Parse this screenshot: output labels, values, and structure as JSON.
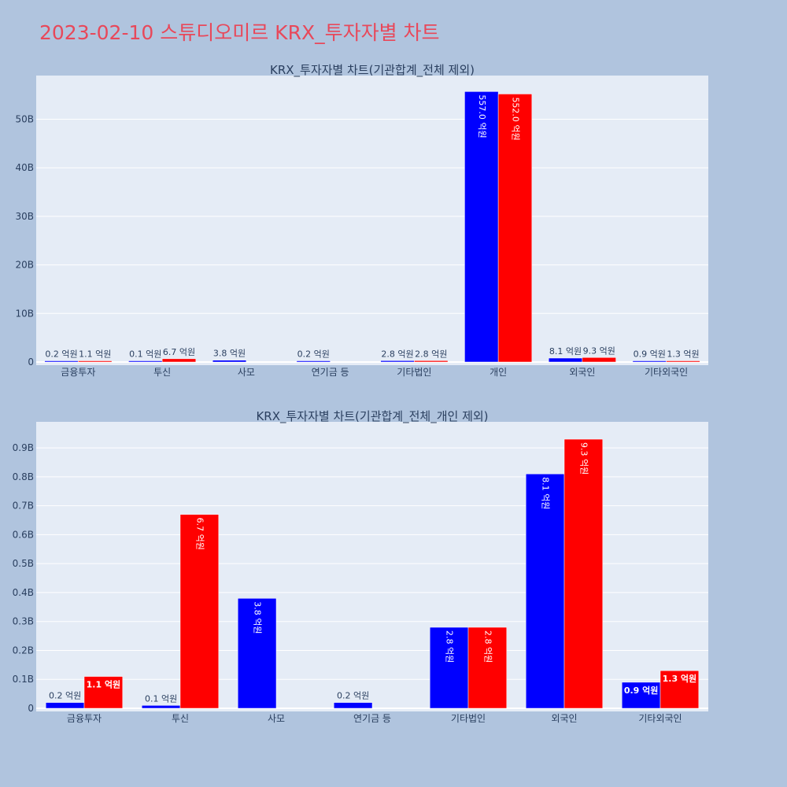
{
  "title": "2023-02-10 스튜디오미르 KRX_투자자별 차트",
  "colors": {
    "sell": "#0000FF",
    "buy": "#FF0000",
    "title": "#E8485A",
    "plot_bg": "#E5ECF6",
    "page_bg": "#B0C4DE"
  },
  "chart_data": [
    {
      "type": "bar",
      "title": "KRX_투자자별 차트(기관합계_전체 제외)",
      "categories": [
        "금융투자",
        "투신",
        "사모",
        "연기금 등",
        "기타법인",
        "개인",
        "외국인",
        "기타외국인"
      ],
      "series": [
        {
          "values": [
            20000000,
            10000000,
            380000000,
            20000000,
            280000000,
            55700000000,
            810000000,
            90000000
          ],
          "labels": [
            "0.2 억원",
            "0.1 억원",
            "3.8 억원",
            "0.2 억원",
            "2.8 억원",
            "557.0 억원",
            "8.1 억원",
            "0.9 억원"
          ]
        },
        {
          "values": [
            110000000,
            670000000,
            null,
            null,
            280000000,
            55200000000,
            930000000,
            130000000
          ],
          "labels": [
            "1.1 억원",
            "6.7 억원",
            "",
            "",
            "2.8 억원",
            "552.0 억원",
            "9.3 억원",
            "1.3 억원"
          ]
        }
      ],
      "yticks": [
        "0",
        "10B",
        "20B",
        "30B",
        "40B",
        "50B"
      ],
      "ylim": [
        0,
        59000000000
      ],
      "grid": true
    },
    {
      "type": "bar",
      "title": "KRX_투자자별 차트(기관합계_전체_개인 제외)",
      "categories": [
        "금융투자",
        "투신",
        "사모",
        "연기금 등",
        "기타법인",
        "외국인",
        "기타외국인"
      ],
      "series": [
        {
          "values": [
            20000000,
            10000000,
            380000000,
            20000000,
            280000000,
            810000000,
            90000000
          ],
          "labels": [
            "0.2 억원",
            "0.1 억원",
            "3.8 억원",
            "0.2 억원",
            "2.8 억원",
            "8.1 억원",
            "0.9 억원"
          ]
        },
        {
          "values": [
            110000000,
            670000000,
            null,
            null,
            280000000,
            930000000,
            130000000
          ],
          "labels": [
            "1.1 억원",
            "6.7 억원",
            "",
            "",
            "2.8 억원",
            "9.3 억원",
            "1.3 억원"
          ]
        }
      ],
      "yticks": [
        "0",
        "0.1B",
        "0.2B",
        "0.3B",
        "0.4B",
        "0.5B",
        "0.6B",
        "0.7B",
        "0.8B",
        "0.9B"
      ],
      "ylim": [
        0,
        990000000
      ],
      "grid": true
    }
  ]
}
